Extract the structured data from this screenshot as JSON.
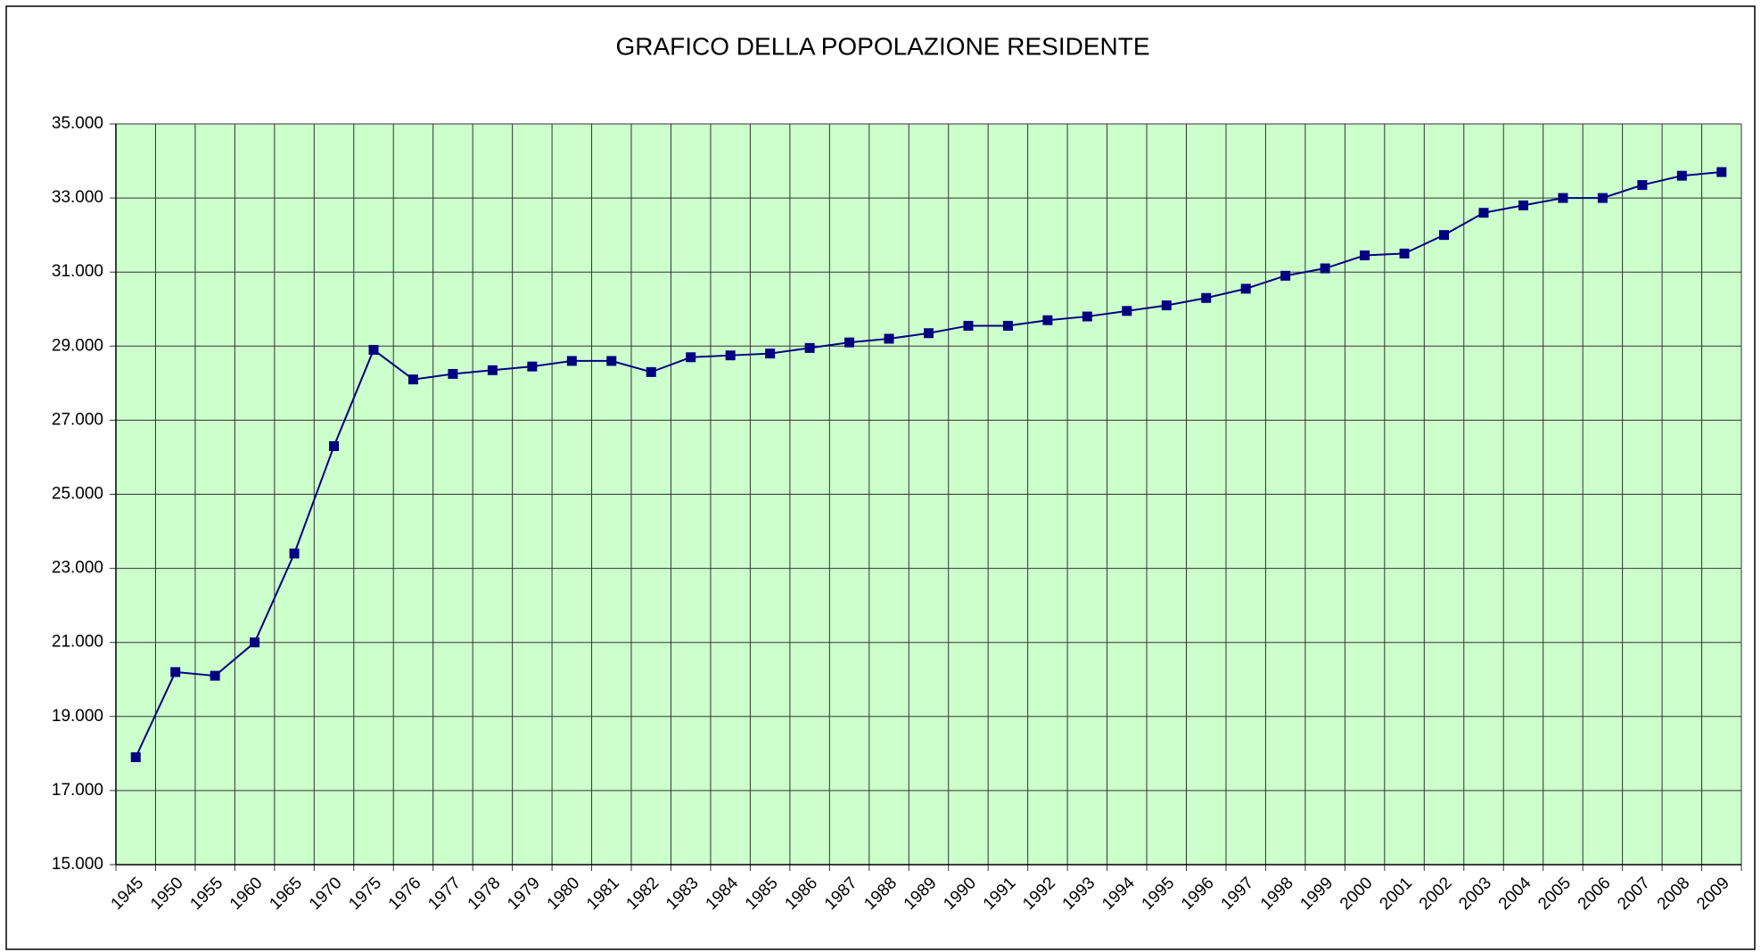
{
  "chart_data": {
    "type": "line",
    "title": "GRAFICO DELLA POPOLAZIONE RESIDENTE",
    "categories": [
      "1945",
      "1950",
      "1955",
      "1960",
      "1965",
      "1970",
      "1975",
      "1976",
      "1977",
      "1978",
      "1979",
      "1980",
      "1981",
      "1982",
      "1983",
      "1984",
      "1985",
      "1986",
      "1987",
      "1988",
      "1989",
      "1990",
      "1991",
      "1992",
      "1993",
      "1994",
      "1995",
      "1996",
      "1997",
      "1998",
      "1999",
      "2000",
      "2001",
      "2002",
      "2003",
      "2004",
      "2005",
      "2006",
      "2007",
      "2008",
      "2009"
    ],
    "values": [
      17900,
      20200,
      20100,
      21000,
      23400,
      26300,
      28900,
      28100,
      28250,
      28350,
      28450,
      28600,
      28600,
      28300,
      28700,
      28750,
      28800,
      28950,
      29100,
      29200,
      29350,
      29550,
      29550,
      29700,
      29800,
      29950,
      30100,
      30300,
      30550,
      30900,
      31100,
      31450,
      31500,
      32000,
      32600,
      32800,
      33000,
      33000,
      33350,
      33600,
      33700
    ],
    "color": "#000080",
    "ylim": [
      15000,
      35000
    ],
    "yticks": [
      {
        "value": 15000,
        "label": "15.000"
      },
      {
        "value": 17000,
        "label": "17.000"
      },
      {
        "value": 19000,
        "label": "19.000"
      },
      {
        "value": 21000,
        "label": "21.000"
      },
      {
        "value": 23000,
        "label": "23.000"
      },
      {
        "value": 25000,
        "label": "25.000"
      },
      {
        "value": 27000,
        "label": "27.000"
      },
      {
        "value": 29000,
        "label": "29.000"
      },
      {
        "value": 31000,
        "label": "31.000"
      },
      {
        "value": 33000,
        "label": "33.000"
      },
      {
        "value": 35000,
        "label": "35.000"
      }
    ],
    "grid": true
  }
}
